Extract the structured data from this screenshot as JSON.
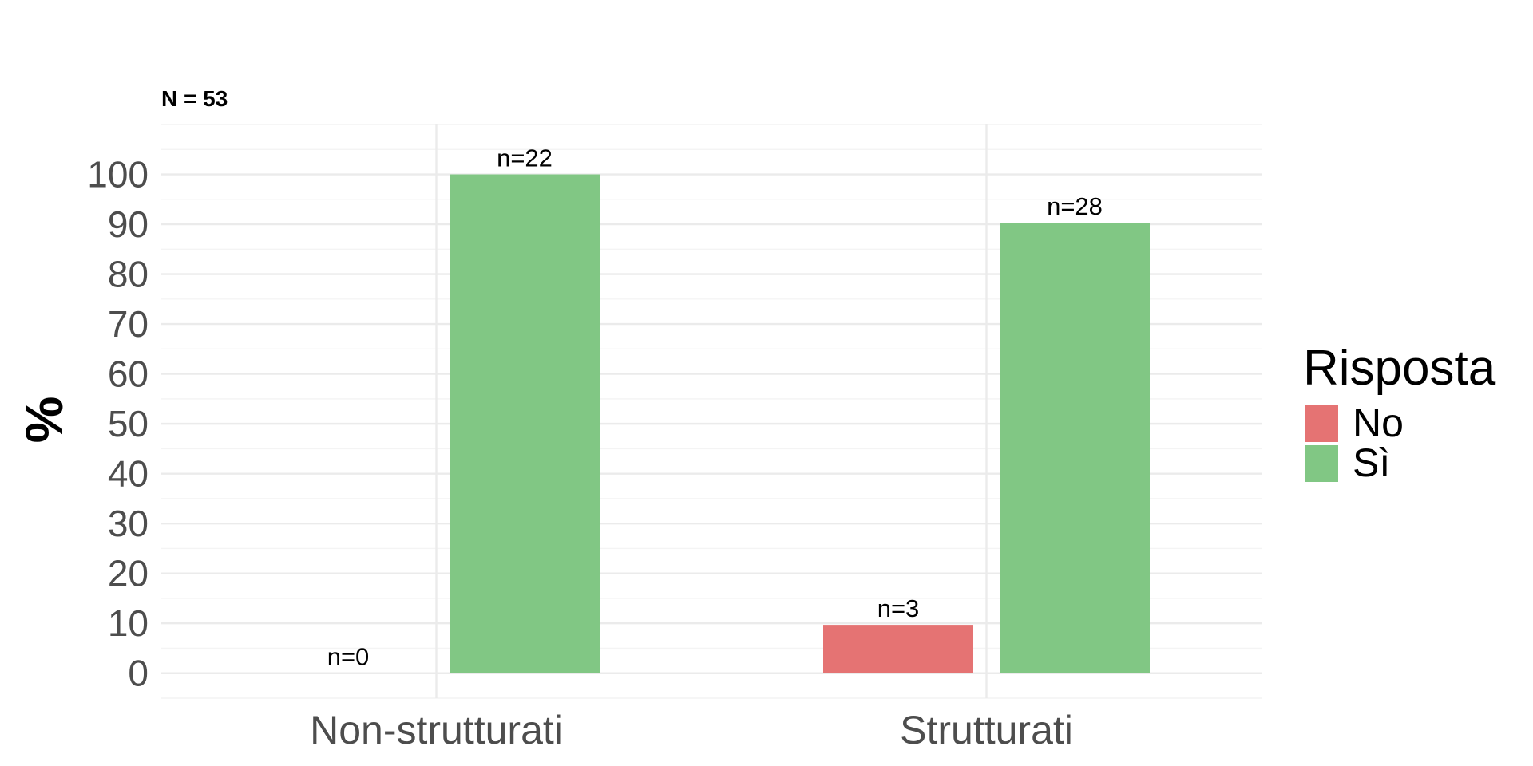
{
  "chart_data": {
    "type": "bar",
    "subtitle": "N = 53",
    "ylabel": "%",
    "categories": [
      "Non-strutturati",
      "Strutturati"
    ],
    "yticks": [
      0,
      10,
      20,
      30,
      40,
      50,
      60,
      70,
      80,
      90,
      100
    ],
    "ylim": [
      -5,
      110
    ],
    "grid": true,
    "legend": {
      "title": "Risposta",
      "placement": "right"
    },
    "series": [
      {
        "name": "No",
        "color": "#E57373",
        "values": [
          0,
          9.7
        ],
        "labels": [
          "n=0",
          "n=3"
        ]
      },
      {
        "name": "Sì",
        "color": "#81C784",
        "values": [
          100,
          90.3
        ],
        "labels": [
          "n=22",
          "n=28"
        ]
      }
    ]
  }
}
